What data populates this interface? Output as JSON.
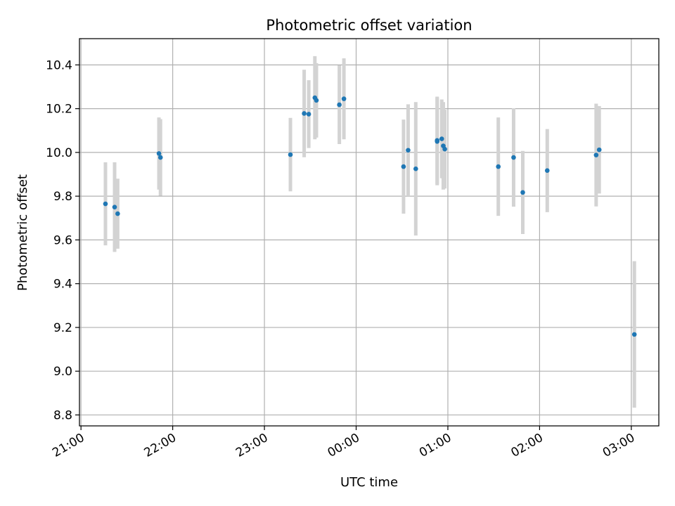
{
  "chart_data": {
    "type": "scatter",
    "title": "Photometric offset variation",
    "xlabel": "UTC time",
    "ylabel": "Photometric offset",
    "x_unit": "UTC clock time (points after 00:00 are on the following day)",
    "xlim": [
      "20:59",
      "03:18"
    ],
    "ylim": [
      8.75,
      10.52
    ],
    "xticks": [
      "21:00",
      "22:00",
      "23:00",
      "00:00",
      "01:00",
      "02:00",
      "03:00"
    ],
    "yticks": [
      8.8,
      9.0,
      9.2,
      9.4,
      9.6,
      9.8,
      10.0,
      10.2,
      10.4
    ],
    "grid": true,
    "point_color": "#1f77b4",
    "errorbar_color": "#d3d3d3",
    "points": [
      {
        "x": "21:16",
        "y": 9.765,
        "yerr": 0.19
      },
      {
        "x": "21:22",
        "y": 9.75,
        "yerr": 0.205
      },
      {
        "x": "21:24",
        "y": 9.72,
        "yerr": 0.16
      },
      {
        "x": "21:51",
        "y": 9.995,
        "yerr": 0.165
      },
      {
        "x": "21:52",
        "y": 9.977,
        "yerr": 0.175
      },
      {
        "x": "23:17",
        "y": 9.99,
        "yerr": 0.168
      },
      {
        "x": "23:26",
        "y": 10.178,
        "yerr": 0.2
      },
      {
        "x": "23:29",
        "y": 10.175,
        "yerr": 0.155
      },
      {
        "x": "23:33",
        "y": 10.25,
        "yerr": 0.19
      },
      {
        "x": "23:34",
        "y": 10.238,
        "yerr": 0.17
      },
      {
        "x": "23:49",
        "y": 10.218,
        "yerr": 0.18
      },
      {
        "x": "23:52",
        "y": 10.245,
        "yerr": 0.185
      },
      {
        "x": "00:31",
        "y": 9.935,
        "yerr": 0.215
      },
      {
        "x": "00:34",
        "y": 10.01,
        "yerr": 0.21
      },
      {
        "x": "00:39",
        "y": 9.925,
        "yerr": 0.305
      },
      {
        "x": "00:53",
        "y": 10.05,
        "yerr": 0.2
      },
      {
        "x": "00:53",
        "y": 10.055,
        "yerr": 0.2
      },
      {
        "x": "00:56",
        "y": 10.062,
        "yerr": 0.18
      },
      {
        "x": "00:57",
        "y": 10.03,
        "yerr": 0.2
      },
      {
        "x": "00:58",
        "y": 10.015,
        "yerr": 0.18
      },
      {
        "x": "01:33",
        "y": 9.935,
        "yerr": 0.225
      },
      {
        "x": "01:43",
        "y": 9.977,
        "yerr": 0.225
      },
      {
        "x": "01:49",
        "y": 9.817,
        "yerr": 0.19
      },
      {
        "x": "02:05",
        "y": 9.917,
        "yerr": 0.19
      },
      {
        "x": "02:37",
        "y": 9.988,
        "yerr": 0.235
      },
      {
        "x": "02:39",
        "y": 10.012,
        "yerr": 0.2
      },
      {
        "x": "03:02",
        "y": 9.168,
        "yerr": 0.335
      }
    ]
  }
}
